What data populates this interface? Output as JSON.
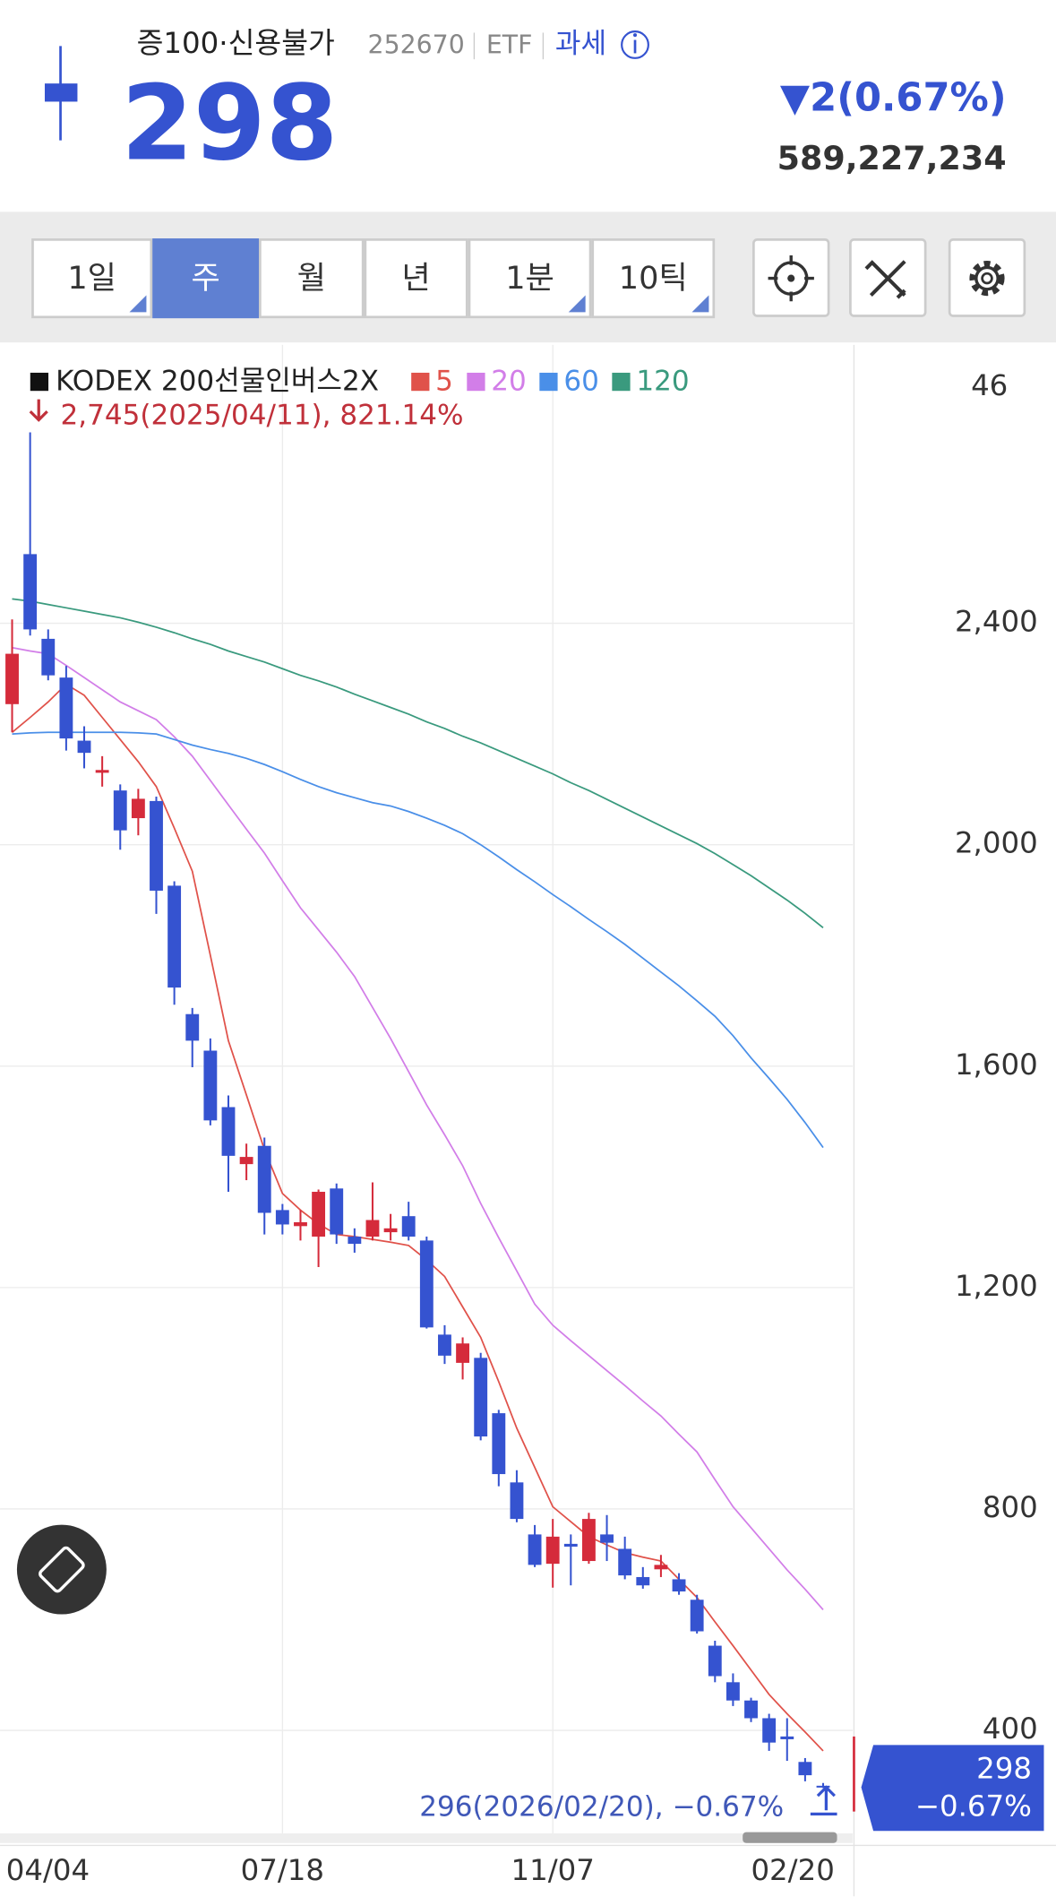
{
  "header": {
    "name": "증100·신용불가",
    "code": "252670",
    "market": "ETF",
    "tax": "과세",
    "price": "298",
    "change": "▼2(0.67%)",
    "volume": "589,227,234"
  },
  "toolbar": [
    "1일",
    "주",
    "월",
    "년",
    "1분",
    "10틱"
  ],
  "chart_data": {
    "type": "candlestick",
    "legend_title": "KODEX 200선물인버스2X",
    "annotations": [
      "2,745(2025/04/11), 821.14%",
      "296(2026/02/20), −0.67%"
    ],
    "top_label": "46",
    "price_tag": [
      "298",
      "−0.67%"
    ],
    "up_color": "#d52b3b",
    "down_color": "#3553d0",
    "categories": [
      "04/04",
      null,
      null,
      null,
      null,
      null,
      null,
      null,
      null,
      null,
      null,
      null,
      null,
      null,
      null,
      "07/18",
      null,
      null,
      null,
      null,
      null,
      null,
      null,
      null,
      null,
      null,
      null,
      null,
      null,
      null,
      "11/07",
      null,
      null,
      null,
      null,
      null,
      null,
      null,
      null,
      null,
      null,
      null,
      null,
      null,
      null,
      "02/20"
    ],
    "open": [
      2254,
      2525,
      2372,
      2302,
      2188,
      2130,
      2098,
      2048,
      2079,
      1926,
      1694,
      1628,
      1526,
      1423,
      1456,
      1340,
      1311,
      1292,
      1379,
      1292,
      1292,
      1300,
      1329,
      1285,
      1115,
      1064,
      1073,
      973,
      848,
      754,
      701,
      737,
      706,
      754,
      728,
      677,
      691,
      673,
      636,
      553,
      487,
      454,
      422,
      389,
      343,
      300
    ],
    "close": [
      2345,
      2389,
      2306,
      2192,
      2166,
      2135,
      2026,
      2083,
      1917,
      1742,
      1646,
      1502,
      1438,
      1436,
      1335,
      1314,
      1318,
      1373,
      1296,
      1279,
      1322,
      1307,
      1292,
      1128,
      1077,
      1099,
      931,
      863,
      782,
      699,
      750,
      732,
      782,
      739,
      680,
      662,
      699,
      651,
      579,
      498,
      454,
      422,
      378,
      384,
      319,
      298
    ],
    "high": [
      2407,
      2745,
      2389,
      2323,
      2214,
      2160,
      2109,
      2101,
      2087,
      1934,
      1705,
      1650,
      1547,
      1460,
      1471,
      1351,
      1340,
      1377,
      1388,
      1307,
      1390,
      1333,
      1355,
      1292,
      1132,
      1110,
      1082,
      979,
      870,
      771,
      782,
      754,
      793,
      789,
      750,
      695,
      717,
      684,
      645,
      562,
      503,
      459,
      430,
      422,
      350,
      305
    ],
    "low": [
      2203,
      2378,
      2297,
      2170,
      2138,
      2105,
      1991,
      2017,
      1875,
      1711,
      1598,
      1493,
      1373,
      1394,
      1296,
      1296,
      1285,
      1237,
      1279,
      1263,
      1285,
      1285,
      1285,
      1126,
      1062,
      1034,
      924,
      841,
      776,
      695,
      658,
      662,
      701,
      706,
      673,
      656,
      677,
      645,
      575,
      487,
      444,
      415,
      363,
      345,
      308,
      296
    ],
    "series": [
      {
        "name": "5",
        "color": "#e0524a",
        "values": [
          2203,
          2230,
          2258,
          2290,
          2270,
          2230,
          2190,
          2150,
          2105,
          2030,
          1952,
          1800,
          1646,
          1548,
          1449,
          1370,
          1340,
          1315,
          1296,
          1292,
          1287,
          1282,
          1276,
          1250,
          1220,
          1165,
          1110,
          1030,
          946,
          875,
          804,
          777,
          750,
          735,
          721,
          713,
          706,
          673,
          640,
          596,
          553,
          509,
          465,
          430,
          397,
          363
        ]
      },
      {
        "name": "20",
        "color": "#d27ee8",
        "values": [
          2356,
          2350,
          2345,
          2324,
          2302,
          2280,
          2258,
          2242,
          2226,
          2195,
          2160,
          2116,
          2072,
          2028,
          1985,
          1935,
          1886,
          1846,
          1806,
          1762,
          1706,
          1650,
          1590,
          1530,
          1476,
          1420,
          1352,
          1290,
          1230,
          1170,
          1132,
          1104,
          1077,
          1050,
          1023,
          995,
          968,
          935,
          903,
          853,
          804,
          766,
          728,
          690,
          655,
          618
        ]
      },
      {
        "name": "60",
        "color": "#4a8fe8",
        "values": [
          2200,
          2202,
          2203,
          2203,
          2203,
          2203,
          2203,
          2202,
          2200,
          2190,
          2180,
          2172,
          2165,
          2156,
          2145,
          2132,
          2118,
          2105,
          2094,
          2085,
          2076,
          2070,
          2060,
          2048,
          2035,
          2020,
          2000,
          1978,
          1955,
          1933,
          1910,
          1888,
          1865,
          1843,
          1820,
          1795,
          1770,
          1745,
          1718,
          1690,
          1655,
          1615,
          1578,
          1540,
          1498,
          1453
        ]
      },
      {
        "name": "120",
        "color": "#3a9a7e",
        "values": [
          2444,
          2440,
          2434,
          2428,
          2422,
          2416,
          2410,
          2402,
          2393,
          2383,
          2372,
          2362,
          2350,
          2340,
          2330,
          2318,
          2306,
          2296,
          2285,
          2272,
          2260,
          2248,
          2236,
          2222,
          2210,
          2196,
          2184,
          2170,
          2156,
          2142,
          2128,
          2112,
          2098,
          2082,
          2066,
          2050,
          2034,
          2018,
          2002,
          1984,
          1964,
          1944,
          1922,
          1900,
          1876,
          1850
        ]
      }
    ],
    "ylim": [
      214,
      2903
    ],
    "yticks": [
      400,
      800,
      {
        "value": 1200,
        "label": "1,200"
      },
      {
        "value": 1600,
        "label": "1,600"
      },
      {
        "value": 2000,
        "label": "2,000"
      },
      {
        "value": 2400,
        "label": "2,400"
      }
    ],
    "grid": true
  }
}
